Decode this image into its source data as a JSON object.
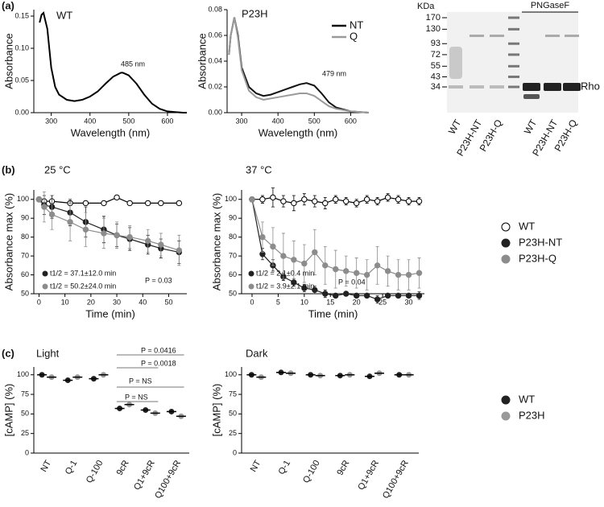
{
  "chart_data": [
    {
      "type": "line",
      "panel": "(a)",
      "title": "WT",
      "xlabel": "Wavelength (nm)",
      "ylabel": "Absorbance",
      "xlim": [
        255,
        650
      ],
      "ylim": [
        0,
        0.16
      ],
      "xticks": [
        300,
        400,
        500,
        600
      ],
      "yticks": [
        {
          "value": 0,
          "label": "0.00"
        },
        0.05,
        {
          "value": 0.1,
          "label": "0.10"
        },
        0.15
      ],
      "x": [
        270,
        275,
        280,
        290,
        300,
        310,
        320,
        340,
        360,
        380,
        400,
        420,
        440,
        460,
        480,
        485,
        500,
        520,
        540,
        560,
        580,
        600,
        620,
        640,
        650
      ],
      "series": [
        {
          "color": "#000000",
          "values": [
            0.14,
            0.152,
            0.155,
            0.13,
            0.07,
            0.04,
            0.028,
            0.02,
            0.018,
            0.02,
            0.025,
            0.033,
            0.045,
            0.056,
            0.062,
            0.062,
            0.058,
            0.045,
            0.028,
            0.014,
            0.006,
            0.002,
            0.001,
            0,
            0
          ]
        }
      ],
      "annotations": [
        "485 nm"
      ]
    },
    {
      "type": "line",
      "title": "P23H",
      "xlabel": "Wavelength (nm)",
      "ylabel": "Absorbance",
      "xlim": [
        260,
        650
      ],
      "ylim": [
        0,
        0.08
      ],
      "xticks": [
        300,
        400,
        500,
        600
      ],
      "yticks": [
        {
          "value": 0,
          "label": "0.00"
        },
        0.02,
        0.04,
        0.06,
        0.08
      ],
      "x": [
        265,
        270,
        280,
        290,
        300,
        320,
        340,
        360,
        380,
        400,
        420,
        440,
        460,
        479,
        500,
        520,
        540,
        560,
        600,
        650
      ],
      "series": [
        {
          "name": "NT",
          "color": "#111111",
          "values": [
            0.045,
            0.06,
            0.074,
            0.06,
            0.035,
            0.02,
            0.015,
            0.013,
            0.014,
            0.016,
            0.018,
            0.02,
            0.022,
            0.023,
            0.021,
            0.015,
            0.008,
            0.004,
            0.001,
            0
          ]
        },
        {
          "name": "Q",
          "color": "#9a9a9a",
          "values": [
            0.045,
            0.06,
            0.074,
            0.058,
            0.033,
            0.017,
            0.012,
            0.01,
            0.011,
            0.012,
            0.013,
            0.014,
            0.015,
            0.015,
            0.013,
            0.009,
            0.005,
            0.003,
            0.001,
            0
          ]
        }
      ],
      "annotations": [
        "479 nm"
      ]
    },
    {
      "type": "gel",
      "unit_label": "KDa",
      "markers": [
        170,
        130,
        93,
        72,
        55,
        43,
        34
      ],
      "group_label": "PNGaseF",
      "band_label": "Rho",
      "lanes": [
        "WT",
        "P23H-NT",
        "P23H-Q",
        "WT",
        "P23H-NT",
        "P23H-Q"
      ]
    },
    {
      "type": "errorbar",
      "panel": "(b)",
      "title": "25 °C",
      "xlabel": "Time (min)",
      "ylabel": "Absorbance max (%)",
      "xlim": [
        -2,
        57
      ],
      "ylim": [
        50,
        105
      ],
      "xticks": [
        0,
        10,
        20,
        30,
        40,
        50
      ],
      "yticks": [
        50,
        60,
        70,
        80,
        90,
        100
      ],
      "x": [
        0,
        2,
        5,
        12,
        18,
        25,
        30,
        35,
        42,
        47,
        54
      ],
      "series": [
        {
          "color": "#000000",
          "fill": "#ffffff",
          "values": [
            100,
            99,
            99,
            98,
            98,
            98,
            101,
            98,
            98,
            98,
            98
          ],
          "errors": [
            1,
            1,
            1,
            1,
            1,
            1,
            1,
            1,
            1,
            1,
            1
          ]
        },
        {
          "color": "#222222",
          "fill": "#222222",
          "values": [
            100,
            97,
            96,
            93,
            88,
            84,
            81,
            79,
            76,
            74,
            72
          ],
          "errors": [
            0,
            5,
            6,
            7,
            8,
            7,
            6,
            6,
            5,
            5,
            6
          ]
        },
        {
          "color": "#8c8c8c",
          "fill": "#8c8c8c",
          "values": [
            100,
            96,
            92,
            88,
            84,
            82,
            81,
            80,
            78,
            76,
            73
          ],
          "errors": [
            0,
            8,
            8,
            10,
            9,
            8,
            7,
            6,
            6,
            6,
            8
          ]
        }
      ],
      "annotations": [
        "t1/2 = 37.1±12.0 min",
        "t1/2 = 50.2±24.0 min",
        "P = 0.03"
      ]
    },
    {
      "type": "errorbar",
      "title": "37 °C",
      "xlabel": "Time (min)",
      "ylabel": "Absorbance max (%)",
      "xlim": [
        -2,
        33
      ],
      "ylim": [
        50,
        105
      ],
      "xticks": [
        0,
        5,
        10,
        15,
        20,
        25,
        30
      ],
      "yticks": [
        50,
        60,
        70,
        80,
        90,
        100
      ],
      "x": [
        0,
        2,
        4,
        6,
        8,
        10,
        12,
        14,
        16,
        18,
        20,
        22,
        24,
        26,
        28,
        30,
        32
      ],
      "series": [
        {
          "name": "WT",
          "color": "#000000",
          "fill": "#ffffff",
          "values": [
            100,
            100,
            101,
            99,
            98,
            100,
            99,
            98,
            100,
            99,
            98,
            100,
            99,
            101,
            100,
            99,
            99
          ],
          "errors": [
            0,
            2,
            5,
            3,
            4,
            3,
            3,
            3,
            2,
            2,
            2,
            2,
            2,
            2,
            2,
            2,
            2
          ]
        },
        {
          "name": "P23H-NT",
          "color": "#222222",
          "fill": "#222222",
          "values": [
            100,
            71,
            65,
            59,
            56,
            53,
            52,
            50,
            49,
            50,
            49,
            49,
            47,
            49,
            49,
            49,
            49
          ],
          "errors": [
            0,
            3,
            3,
            2,
            2,
            2,
            2,
            2,
            1,
            1,
            1,
            1,
            2,
            1,
            1,
            1,
            2
          ]
        },
        {
          "name": "P23H-Q",
          "color": "#8c8c8c",
          "fill": "#8c8c8c",
          "values": [
            100,
            80,
            75,
            70,
            68,
            66,
            72,
            65,
            63,
            62,
            61,
            60,
            65,
            62,
            60,
            60,
            61
          ],
          "errors": [
            0,
            8,
            10,
            12,
            10,
            10,
            12,
            10,
            10,
            8,
            8,
            8,
            10,
            8,
            8,
            8,
            8
          ]
        }
      ],
      "annotations": [
        "t1/2 = 2.1±0.4 min",
        "t1/2 = 3.9±2.1 min",
        "P = 0.04"
      ]
    },
    {
      "type": "dot",
      "panel": "(c)",
      "title": "Light",
      "ylabel": "[cAMP] (%)",
      "ylim": [
        0,
        110
      ],
      "yticks": [
        0,
        25,
        50,
        75,
        100
      ],
      "categories": [
        "NT",
        "Q-1",
        "Q-100",
        "9cR",
        "Q1+9cR",
        "Q100+9cR"
      ],
      "series": [
        {
          "color": "#222222",
          "values": [
            100,
            93,
            95,
            57,
            55,
            53
          ]
        },
        {
          "color": "#999999",
          "values": [
            97,
            97,
            100,
            62,
            51,
            47
          ]
        }
      ],
      "annotations": [
        "P = 0.0416",
        "P = 0.0018",
        "P = NS",
        "P = NS"
      ]
    },
    {
      "type": "dot",
      "title": "Dark",
      "ylabel": "[cAMP] (%)",
      "ylim": [
        0,
        110
      ],
      "yticks": [
        0,
        25,
        50,
        75,
        100
      ],
      "categories": [
        "NT",
        "Q-1",
        "Q-100",
        "9cR",
        "Q1+9cR",
        "Q100+9cR"
      ],
      "series": [
        {
          "name": "WT",
          "color": "#222222",
          "values": [
            100,
            103,
            100,
            99,
            98,
            100
          ]
        },
        {
          "name": "P23H",
          "color": "#999999",
          "values": [
            97,
            102,
            99,
            100,
            102,
            100
          ]
        }
      ]
    }
  ]
}
